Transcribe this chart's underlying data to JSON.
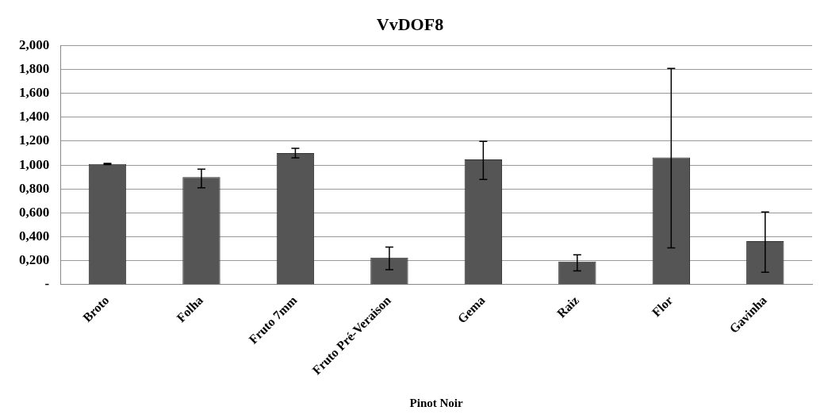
{
  "chart_data": {
    "type": "bar",
    "title": "VvDOF8",
    "xlabel": "Pinot Noir",
    "categories": [
      "Broto",
      "Folha",
      "Fruto 7mm",
      "Fruto Pré-Veraison",
      "Gema",
      "Raiz",
      "Flor",
      "Gavinha"
    ],
    "values": [
      1.01,
      0.9,
      1.1,
      0.226,
      1.047,
      0.193,
      1.064,
      0.364
    ],
    "errors": [
      [
        1.005,
        1.015
      ],
      [
        0.81,
        0.966
      ],
      [
        1.06,
        1.14
      ],
      [
        0.126,
        0.315
      ],
      [
        0.88,
        1.198
      ],
      [
        0.116,
        0.25
      ],
      [
        0.307,
        1.808
      ],
      [
        0.104,
        0.608
      ]
    ],
    "color": "#555555",
    "ylim": [
      0,
      2
    ],
    "yticks": [
      {
        "value": 0,
        "label": "-"
      },
      {
        "value": 0.2,
        "label": "0,200"
      },
      {
        "value": 0.4,
        "label": "0,400"
      },
      {
        "value": 0.6,
        "label": "0,600"
      },
      {
        "value": 0.8,
        "label": "0,800"
      },
      {
        "value": 1,
        "label": "1,000"
      },
      {
        "value": 1.2,
        "label": "1,200"
      },
      {
        "value": 1.4,
        "label": "1,400"
      },
      {
        "value": 1.6,
        "label": "1,600"
      },
      {
        "value": 1.8,
        "label": "1,800"
      },
      {
        "value": 2,
        "label": "2,000"
      }
    ],
    "grid": "y",
    "legend": false
  }
}
